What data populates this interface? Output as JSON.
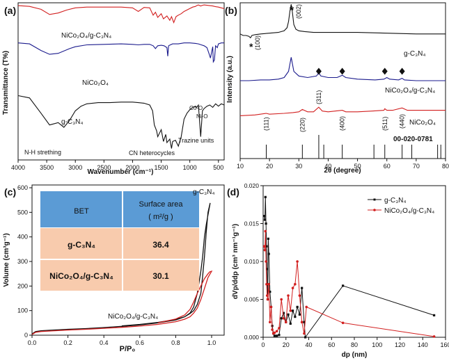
{
  "chart_data": [
    {
      "panel": "(a)",
      "type": "line",
      "xlabel": "Wavenumber (cm⁻¹)",
      "ylabel": "Transmittance (T%)",
      "xlim": [
        4000,
        400
      ],
      "x_ticks": [
        "4000",
        "3500",
        "3000",
        "2500",
        "2000",
        "1500",
        "1000",
        "500"
      ],
      "series": [
        {
          "name": "NiCo₂O₄/g-C₃N₄",
          "color": "#d21f1f",
          "x": [
            4000,
            3800,
            3600,
            3450,
            3300,
            3150,
            3000,
            2800,
            2500,
            2200,
            2000,
            1900,
            1800,
            1700,
            1640,
            1600,
            1560,
            1500,
            1460,
            1400,
            1350,
            1320,
            1280,
            1240,
            1200,
            1150,
            1100,
            1000,
            950,
            900,
            880,
            850,
            810,
            780,
            750,
            700,
            650,
            600,
            570,
            540,
            500,
            450,
            400
          ],
          "y": [
            0.98,
            0.97,
            0.93,
            0.86,
            0.88,
            0.92,
            0.95,
            0.96,
            0.96,
            0.96,
            0.95,
            0.9,
            0.955,
            0.95,
            0.85,
            0.89,
            0.82,
            0.87,
            0.8,
            0.84,
            0.78,
            0.83,
            0.75,
            0.83,
            0.85,
            0.87,
            0.9,
            0.94,
            0.96,
            0.97,
            0.98,
            0.99,
            0.975,
            0.985,
            0.99,
            0.985,
            0.98,
            0.975,
            0.97,
            0.965,
            0.96,
            0.95,
            0.94
          ]
        },
        {
          "name": "NiCo₂O₄",
          "color": "#1a1a8c",
          "x": [
            4000,
            3800,
            3600,
            3450,
            3300,
            3100,
            3000,
            2800,
            2500,
            2200,
            2000,
            1900,
            1800,
            1700,
            1640,
            1600,
            1560,
            1500,
            1450,
            1400,
            1385,
            1370,
            1340,
            1300,
            1200,
            1100,
            1000,
            900,
            850,
            800,
            750,
            700,
            660,
            640,
            620,
            600,
            590,
            570,
            550,
            520,
            500,
            450,
            400
          ],
          "y": [
            0.98,
            0.97,
            0.9,
            0.86,
            0.87,
            0.92,
            0.94,
            0.96,
            0.965,
            0.97,
            0.965,
            0.96,
            0.965,
            0.965,
            0.95,
            0.92,
            0.95,
            0.955,
            0.95,
            0.93,
            0.84,
            0.95,
            0.96,
            0.97,
            0.97,
            0.98,
            0.98,
            0.975,
            0.97,
            0.96,
            0.95,
            0.93,
            0.86,
            0.82,
            0.88,
            0.94,
            0.78,
            0.8,
            0.95,
            0.93,
            0.97,
            0.98,
            0.98
          ]
        },
        {
          "name": "g-C₃N₄",
          "color": "#111111",
          "x": [
            4000,
            3800,
            3600,
            3450,
            3300,
            3200,
            3100,
            3000,
            2900,
            2800,
            2600,
            2400,
            2200,
            2000,
            1900,
            1800,
            1700,
            1650,
            1620,
            1580,
            1560,
            1500,
            1460,
            1420,
            1400,
            1350,
            1320,
            1300,
            1250,
            1200,
            1150,
            1100,
            1050,
            1000,
            950,
            900,
            880,
            850,
            810,
            780,
            750,
            700,
            650,
            600,
            550,
            500,
            450,
            400
          ],
          "y": [
            0.95,
            0.93,
            0.8,
            0.7,
            0.72,
            0.68,
            0.74,
            0.82,
            0.86,
            0.88,
            0.89,
            0.89,
            0.895,
            0.895,
            0.89,
            0.885,
            0.87,
            0.82,
            0.7,
            0.65,
            0.6,
            0.66,
            0.56,
            0.62,
            0.55,
            0.58,
            0.5,
            0.56,
            0.57,
            0.52,
            0.6,
            0.75,
            0.8,
            0.83,
            0.85,
            0.86,
            0.85,
            0.87,
            0.6,
            0.82,
            0.84,
            0.86,
            0.87,
            0.85,
            0.88,
            0.86,
            0.88,
            0.87
          ]
        }
      ],
      "annotations": [
        "N-H strething",
        "CN heterocycles",
        "Trazine units",
        "Co-O",
        "Ni-O"
      ]
    },
    {
      "panel": "(b)",
      "type": "line",
      "xlabel": "2θ (degree)",
      "ylabel": "Intensity (a.u.)",
      "xlim": [
        10,
        80
      ],
      "x_ticks": [
        "10",
        "20",
        "30",
        "40",
        "50",
        "60",
        "70",
        "80"
      ],
      "series": [
        {
          "name": "g-C₃N₄",
          "color": "#111111",
          "x": [
            10,
            11,
            12,
            13,
            13.5,
            14,
            15,
            17,
            20,
            23,
            25,
            26,
            26.5,
            27,
            27.4,
            27.8,
            28.3,
            29,
            30,
            32,
            35,
            40,
            50,
            60,
            70,
            80
          ],
          "y": [
            0.8,
            0.79,
            0.79,
            0.785,
            0.775,
            0.79,
            0.795,
            0.8,
            0.805,
            0.81,
            0.82,
            0.84,
            0.88,
            0.95,
            0.99,
            0.94,
            0.86,
            0.83,
            0.82,
            0.815,
            0.81,
            0.81,
            0.81,
            0.805,
            0.8,
            0.8
          ]
        },
        {
          "name": "NiCo₂O₄/g-C₃N₄",
          "color": "#1a1a8c",
          "x": [
            10,
            13,
            17,
            20,
            23,
            25,
            26.5,
            27.4,
            28.3,
            30,
            33,
            36,
            36.8,
            37.5,
            40,
            43,
            44.8,
            46,
            50,
            56,
            59,
            60,
            61,
            64,
            65.2,
            66,
            70,
            80
          ],
          "y": [
            0.5,
            0.5,
            0.505,
            0.505,
            0.51,
            0.52,
            0.56,
            0.65,
            0.56,
            0.53,
            0.52,
            0.53,
            0.55,
            0.53,
            0.52,
            0.52,
            0.535,
            0.52,
            0.51,
            0.505,
            0.51,
            0.52,
            0.51,
            0.505,
            0.515,
            0.505,
            0.5,
            0.5
          ]
        },
        {
          "name": "NiCo₂O₄",
          "color": "#d21f1f",
          "x": [
            10,
            15,
            18.9,
            20,
            25,
            28,
            30,
            31.2,
            33,
            35,
            36.8,
            38,
            40,
            44.8,
            46,
            50,
            55,
            59,
            59.3,
            60,
            62,
            65.2,
            67,
            70,
            75,
            80
          ],
          "y": [
            0.275,
            0.28,
            0.29,
            0.285,
            0.29,
            0.295,
            0.3,
            0.315,
            0.3,
            0.3,
            0.33,
            0.305,
            0.3,
            0.31,
            0.3,
            0.3,
            0.305,
            0.31,
            0.32,
            0.31,
            0.31,
            0.325,
            0.31,
            0.31,
            0.31,
            0.31
          ]
        }
      ],
      "reference_lines": [
        18.9,
        31.2,
        36.8,
        38.5,
        44.8,
        55.6,
        59.3,
        65.2,
        68.5,
        77.3,
        78.4
      ],
      "reference_card": "00-020-0781",
      "peak_labels": [
        "(100)",
        "(002)",
        "(111)",
        "(220)",
        "(311)",
        "(400)",
        "(511)",
        "(440)"
      ],
      "markers": [
        "*",
        "*"
      ]
    },
    {
      "panel": "(c)",
      "type": "line",
      "xlabel": "P/P₀",
      "ylabel": "Volume (cm³g⁻¹)",
      "xlim": [
        0.0,
        1.0
      ],
      "ylim": [
        0,
        600
      ],
      "x_ticks": [
        "0.0",
        "0.2",
        "0.4",
        "0.6",
        "0.8",
        "1.0"
      ],
      "y_ticks": [
        "0",
        "100",
        "200",
        "300",
        "400",
        "500",
        "600"
      ],
      "series": [
        {
          "name": "g-C₃N₄",
          "color": "#111111",
          "x": [
            0.0,
            0.02,
            0.05,
            0.1,
            0.2,
            0.3,
            0.4,
            0.5,
            0.6,
            0.7,
            0.8,
            0.85,
            0.88,
            0.9,
            0.92,
            0.94,
            0.95,
            0.96,
            0.97,
            0.98,
            0.99,
            0.992,
            0.98,
            0.97,
            0.96,
            0.95,
            0.94,
            0.92,
            0.9,
            0.88,
            0.85,
            0.8,
            0.7,
            0.6,
            0.5
          ],
          "y": [
            5,
            15,
            18,
            20,
            24,
            27,
            31,
            36,
            42,
            50,
            62,
            75,
            90,
            115,
            170,
            260,
            320,
            400,
            450,
            490,
            530,
            538,
            500,
            420,
            320,
            240,
            170,
            125,
            100,
            88,
            75,
            64,
            52,
            44,
            38
          ]
        },
        {
          "name": "NiCo₂O₄/g-C₃N₄",
          "color": "#d21f1f",
          "x": [
            0.0,
            0.02,
            0.05,
            0.1,
            0.2,
            0.3,
            0.4,
            0.5,
            0.6,
            0.7,
            0.8,
            0.85,
            0.88,
            0.9,
            0.92,
            0.94,
            0.96,
            0.98,
            1.0,
            0.99,
            0.98,
            0.96,
            0.94,
            0.92,
            0.9,
            0.88,
            0.85,
            0.8,
            0.7
          ],
          "y": [
            3,
            12,
            15,
            17,
            21,
            24,
            28,
            32,
            37,
            44,
            55,
            65,
            75,
            90,
            110,
            145,
            190,
            235,
            260,
            258,
            250,
            230,
            200,
            170,
            135,
            105,
            82,
            66,
            50
          ]
        }
      ],
      "table": {
        "header": [
          "BET",
          "Surface area",
          "( m²/g )"
        ],
        "rows": [
          [
            "g-C₃N₄",
            "36.4"
          ],
          [
            "NiCo₂O₄/g-C₃N₄",
            "30.1"
          ]
        ]
      }
    },
    {
      "panel": "(d)",
      "type": "line",
      "xlabel": "dp (nm)",
      "ylabel": "dVp/ddp (cm³ nm⁻¹g⁻¹)",
      "xlim": [
        0,
        160
      ],
      "ylim": [
        0,
        0.02
      ],
      "x_ticks": [
        "0",
        "20",
        "40",
        "60",
        "80",
        "100",
        "120",
        "140",
        "160"
      ],
      "y_ticks": [
        "0.000",
        "0.005",
        "0.010",
        "0.015",
        "0.020"
      ],
      "series": [
        {
          "name": "g-C₃N₄",
          "color": "#111111",
          "x": [
            1.0,
            1.5,
            2.0,
            2.5,
            3.0,
            3.5,
            4.0,
            4.5,
            5.0,
            6,
            7,
            8,
            9,
            10,
            12,
            14,
            16,
            18,
            20,
            22,
            24,
            26,
            28,
            30,
            32,
            34,
            36,
            37,
            70,
            150
          ],
          "y": [
            0.016,
            0.0155,
            0.0185,
            0.015,
            0.012,
            0.009,
            0.005,
            0.013,
            0.011,
            0.006,
            0.004,
            0.0015,
            0.0005,
            0.0002,
            0.0002,
            0.0003,
            0.0025,
            0.0032,
            0.002,
            0.003,
            0.0018,
            0.0035,
            0.0027,
            0.004,
            0.003,
            0.0065,
            0.002,
            0.0,
            0.0068,
            0.0029
          ]
        },
        {
          "name": "NiCo₂O₄/g-C₃N₄",
          "color": "#d21f1f",
          "x": [
            1.0,
            1.5,
            2.0,
            2.5,
            3.0,
            3.5,
            4.0,
            5.0,
            6,
            7,
            8,
            9,
            10,
            12,
            14,
            16,
            18,
            20,
            22,
            24,
            26,
            28,
            30,
            32,
            34,
            36,
            38,
            70,
            150
          ],
          "y": [
            0.012,
            0.0115,
            0.014,
            0.01,
            0.007,
            0.0055,
            0.005,
            0.007,
            0.002,
            0.004,
            0.001,
            0.0005,
            0.0006,
            0.0008,
            0.0012,
            0.005,
            0.0025,
            0.002,
            0.0055,
            0.0035,
            0.0065,
            0.007,
            0.01,
            0.0055,
            0.002,
            0.0005,
            0.004,
            0.0019,
            0.0001
          ]
        }
      ]
    }
  ]
}
